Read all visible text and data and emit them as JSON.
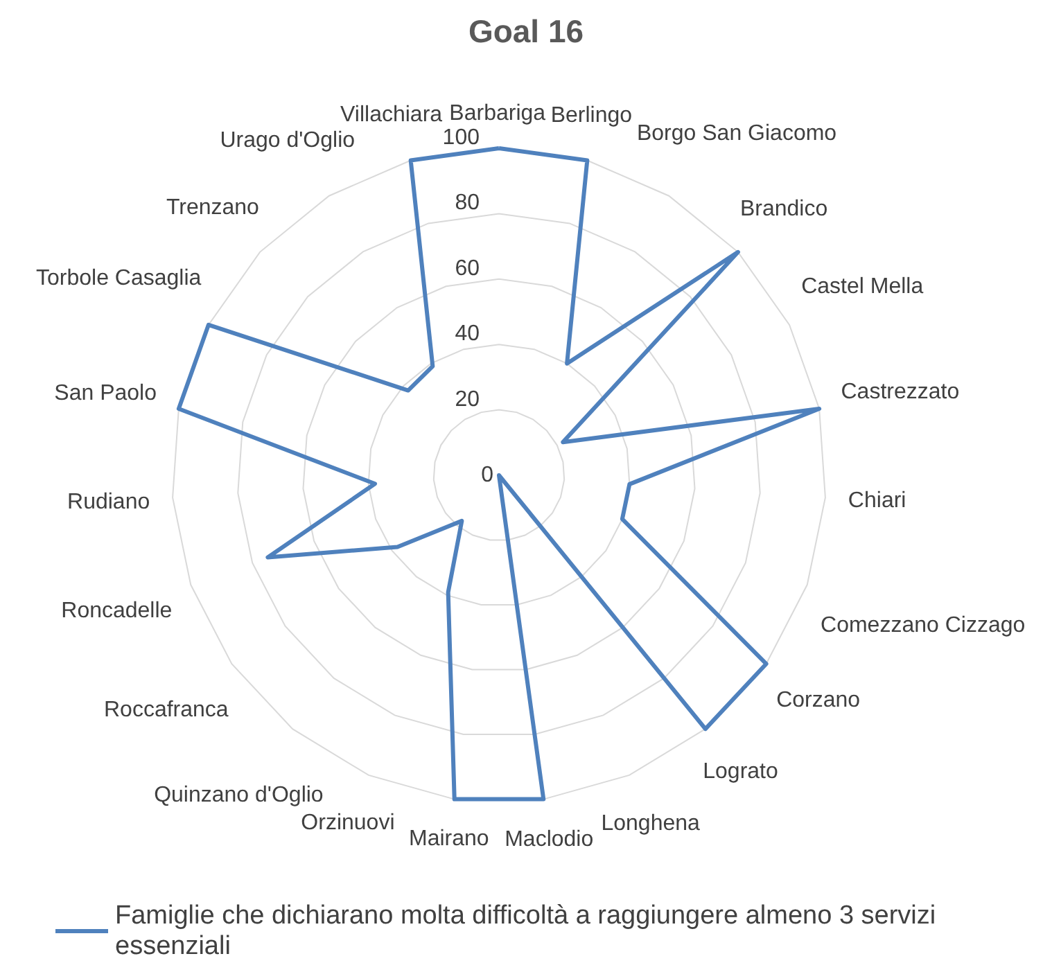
{
  "chart_data": {
    "type": "radar",
    "title": "Goal 16",
    "categories": [
      "Barbariga",
      "Berlingo",
      "Borgo San Giacomo",
      "Brandico",
      "Castel Mella",
      "Castrezzato",
      "Chiari",
      "Comezzano Cizzago",
      "Corzano",
      "Lograto",
      "Longhena",
      "Maclodio",
      "Mairano",
      "Orzinuovi",
      "Quinzano d'Oglio",
      "Roccafranca",
      "Roncadelle",
      "Rudiano",
      "San Paolo",
      "Torbole Casaglia",
      "Trenzano",
      "Urago d'Oglio",
      "Villachiara"
    ],
    "series": [
      {
        "name": "Famiglie che dichiarano molta difficoltà a raggiungere almeno 3 servizi essenziali",
        "color": "#4f81bd",
        "values": [
          100,
          100,
          40,
          100,
          22,
          100,
          40,
          40,
          100,
          100,
          0,
          100,
          100,
          39,
          18,
          38,
          75,
          38,
          100,
          100,
          38,
          39,
          100
        ]
      }
    ],
    "ylim": [
      0,
      100
    ],
    "yticks": [
      0,
      20,
      40,
      60,
      80,
      100
    ],
    "grid": true,
    "legend": "bottom",
    "marker": "none",
    "line_style": "solid"
  }
}
